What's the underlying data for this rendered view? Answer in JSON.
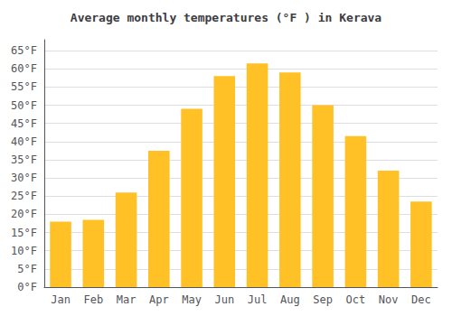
{
  "chart_data": {
    "type": "bar",
    "title": "Average monthly temperatures (°F ) in Kerava",
    "categories": [
      "Jan",
      "Feb",
      "Mar",
      "Apr",
      "May",
      "Jun",
      "Jul",
      "Aug",
      "Sep",
      "Oct",
      "Nov",
      "Dec"
    ],
    "values": [
      18,
      18.5,
      26,
      37.5,
      49,
      58,
      61.5,
      59,
      50,
      41.5,
      32,
      23.5
    ],
    "color": "#FFC125",
    "ylim": [
      0,
      68
    ],
    "yticks": [
      {
        "value": 0,
        "label": "0°F"
      },
      {
        "value": 5,
        "label": "5°F"
      },
      {
        "value": 10,
        "label": "10°F"
      },
      {
        "value": 15,
        "label": "15°F"
      },
      {
        "value": 20,
        "label": "20°F"
      },
      {
        "value": 25,
        "label": "25°F"
      },
      {
        "value": 30,
        "label": "30°F"
      },
      {
        "value": 35,
        "label": "35°F"
      },
      {
        "value": 40,
        "label": "40°F"
      },
      {
        "value": 45,
        "label": "45°F"
      },
      {
        "value": 50,
        "label": "50°F"
      },
      {
        "value": 55,
        "label": "55°F"
      },
      {
        "value": 60,
        "label": "60°F"
      },
      {
        "value": 65,
        "label": "65°F"
      }
    ],
    "grid": true
  }
}
